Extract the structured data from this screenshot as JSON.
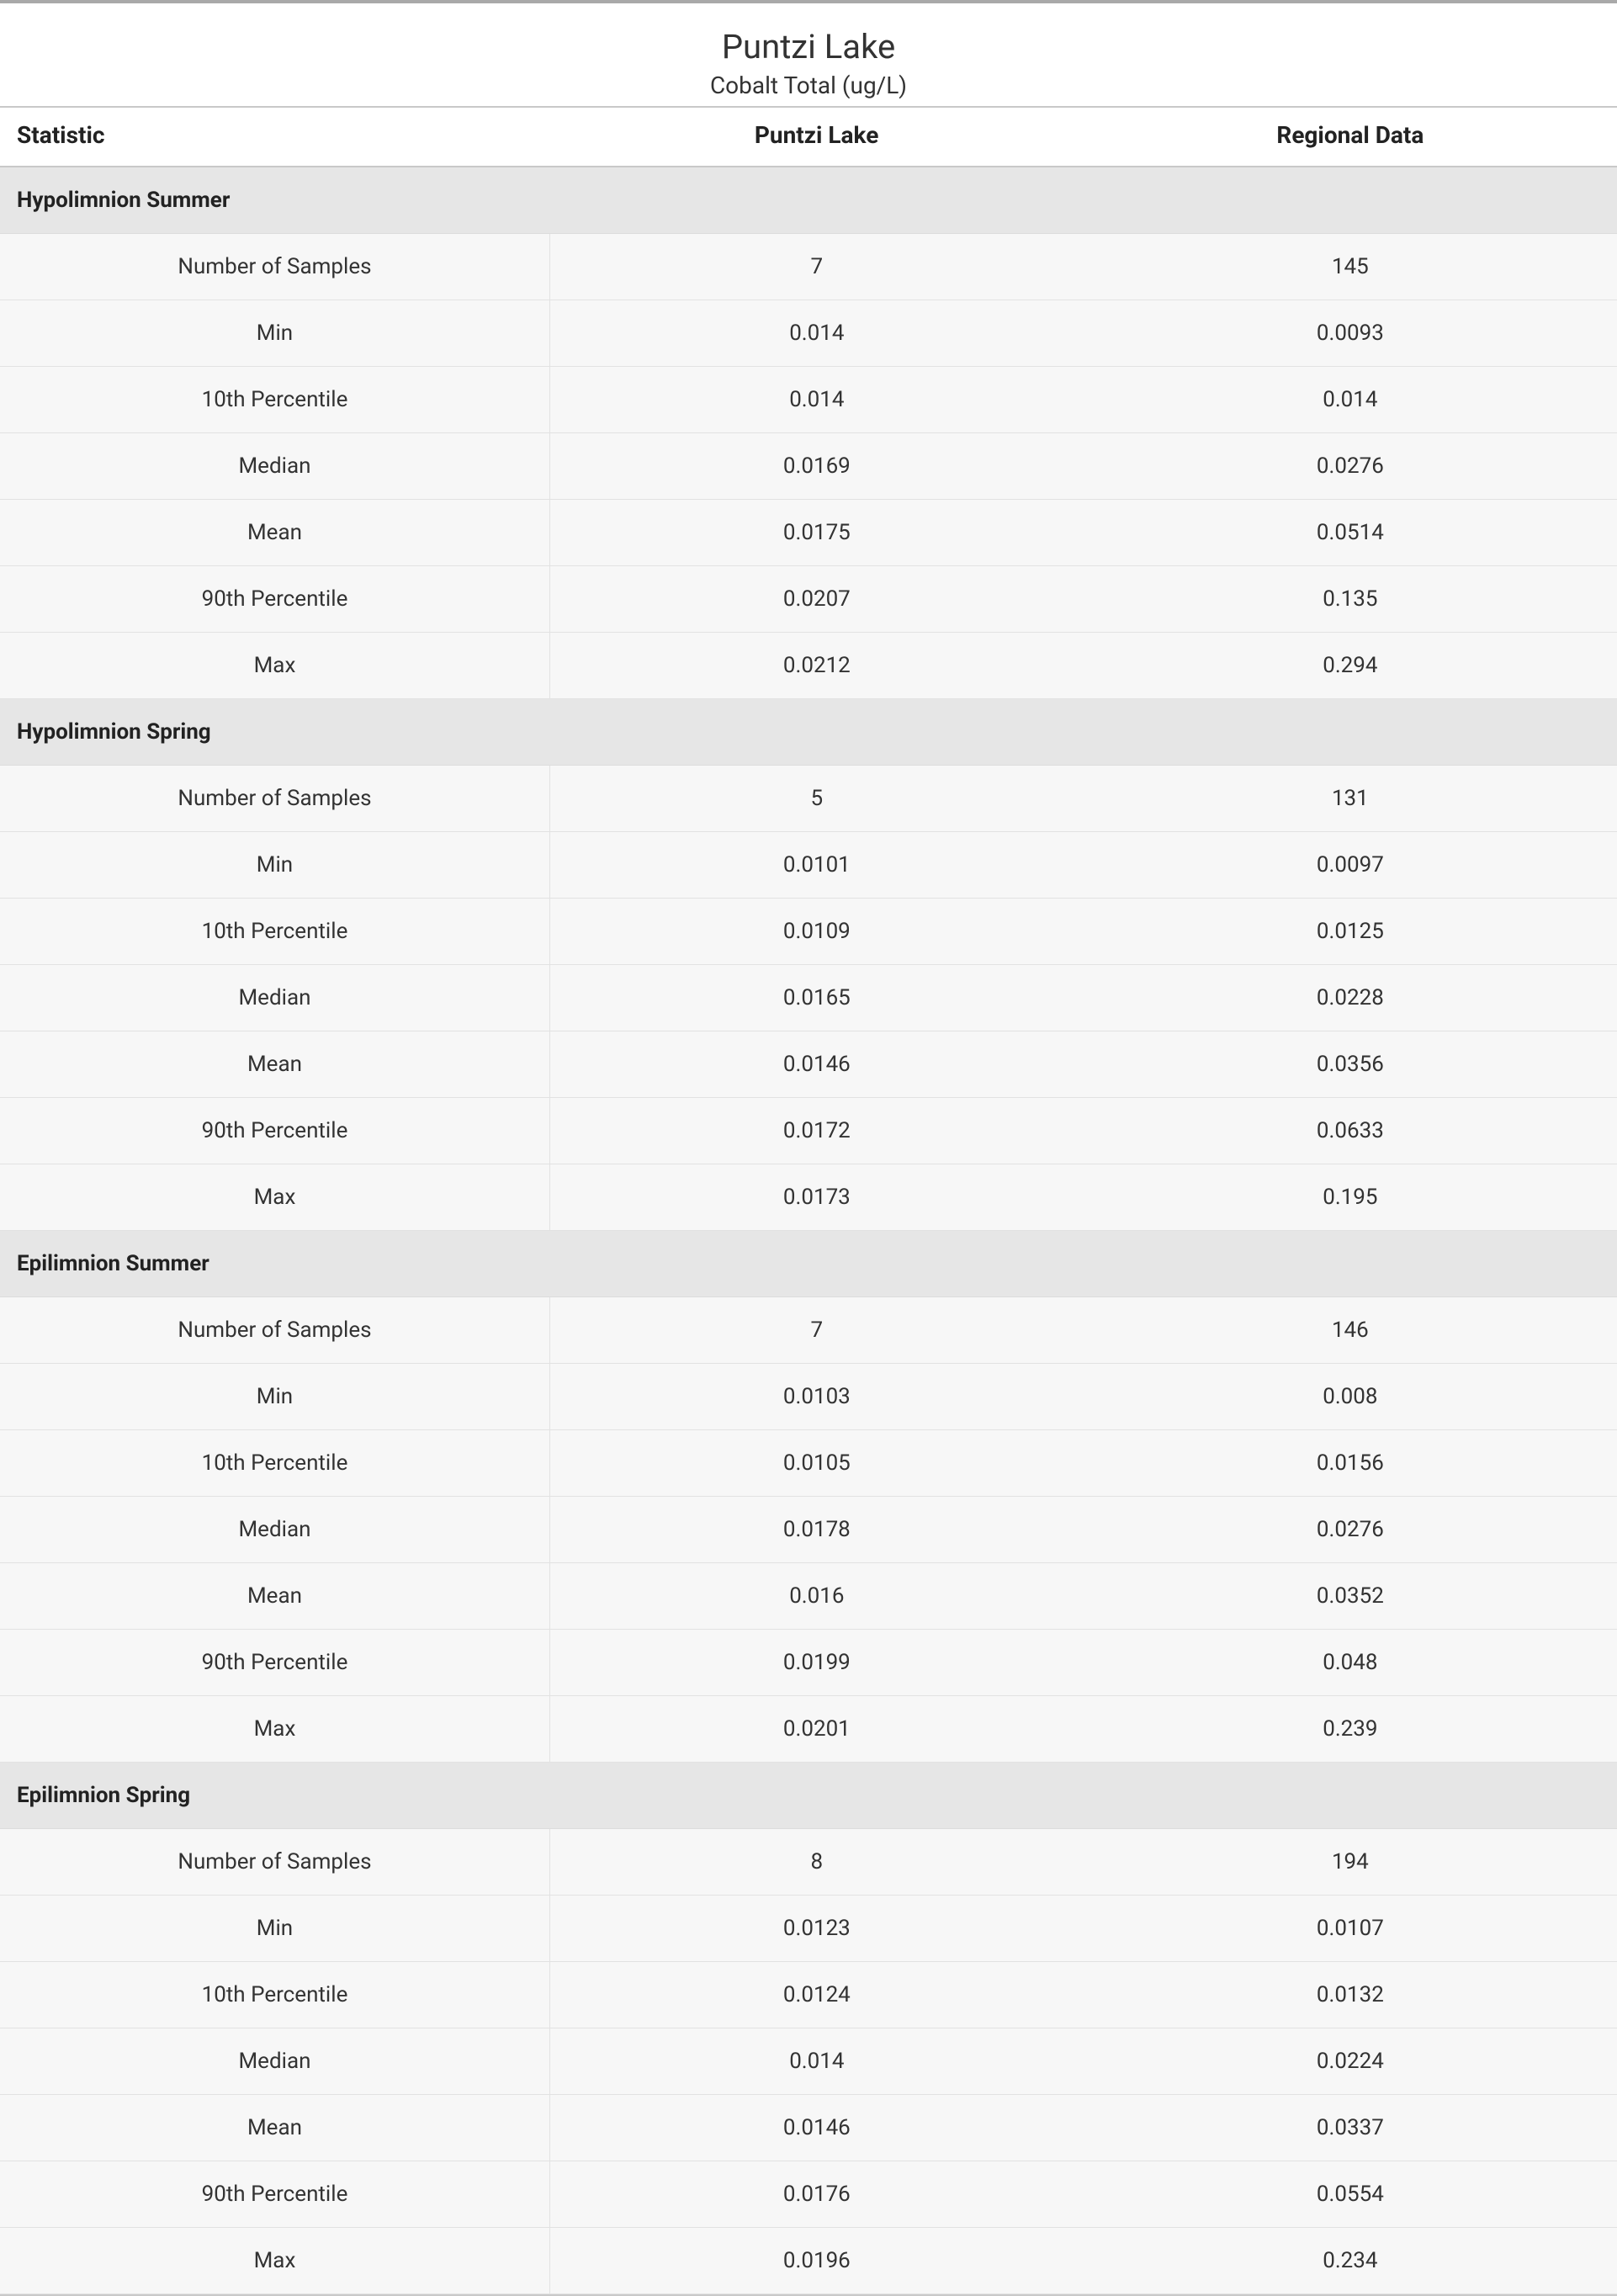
{
  "title": {
    "main": "Puntzi Lake",
    "sub": "Cobalt Total (ug/L)"
  },
  "columns": {
    "stat": "Statistic",
    "site": "Puntzi Lake",
    "regional": "Regional Data"
  },
  "style": {
    "page_border_top_color": "#a9a9a9",
    "header_rule_color": "#c9c9c9",
    "row_border_color": "#e2e2e2",
    "section_bg": "#e6e6e6",
    "stripe_bg": "#f7f7f7",
    "text_color": "#333333",
    "title_fontsize_pt": 30,
    "subtitle_fontsize_pt": 21,
    "header_fontsize_pt": 21,
    "body_fontsize_pt": 20
  },
  "sections": [
    {
      "name": "Hypolimnion Summer",
      "rows": [
        {
          "stat": "Number of Samples",
          "site": "7",
          "regional": "145"
        },
        {
          "stat": "Min",
          "site": "0.014",
          "regional": "0.0093"
        },
        {
          "stat": "10th Percentile",
          "site": "0.014",
          "regional": "0.014"
        },
        {
          "stat": "Median",
          "site": "0.0169",
          "regional": "0.0276"
        },
        {
          "stat": "Mean",
          "site": "0.0175",
          "regional": "0.0514"
        },
        {
          "stat": "90th Percentile",
          "site": "0.0207",
          "regional": "0.135"
        },
        {
          "stat": "Max",
          "site": "0.0212",
          "regional": "0.294"
        }
      ]
    },
    {
      "name": "Hypolimnion Spring",
      "rows": [
        {
          "stat": "Number of Samples",
          "site": "5",
          "regional": "131"
        },
        {
          "stat": "Min",
          "site": "0.0101",
          "regional": "0.0097"
        },
        {
          "stat": "10th Percentile",
          "site": "0.0109",
          "regional": "0.0125"
        },
        {
          "stat": "Median",
          "site": "0.0165",
          "regional": "0.0228"
        },
        {
          "stat": "Mean",
          "site": "0.0146",
          "regional": "0.0356"
        },
        {
          "stat": "90th Percentile",
          "site": "0.0172",
          "regional": "0.0633"
        },
        {
          "stat": "Max",
          "site": "0.0173",
          "regional": "0.195"
        }
      ]
    },
    {
      "name": "Epilimnion Summer",
      "rows": [
        {
          "stat": "Number of Samples",
          "site": "7",
          "regional": "146"
        },
        {
          "stat": "Min",
          "site": "0.0103",
          "regional": "0.008"
        },
        {
          "stat": "10th Percentile",
          "site": "0.0105",
          "regional": "0.0156"
        },
        {
          "stat": "Median",
          "site": "0.0178",
          "regional": "0.0276"
        },
        {
          "stat": "Mean",
          "site": "0.016",
          "regional": "0.0352"
        },
        {
          "stat": "90th Percentile",
          "site": "0.0199",
          "regional": "0.048"
        },
        {
          "stat": "Max",
          "site": "0.0201",
          "regional": "0.239"
        }
      ]
    },
    {
      "name": "Epilimnion Spring",
      "rows": [
        {
          "stat": "Number of Samples",
          "site": "8",
          "regional": "194"
        },
        {
          "stat": "Min",
          "site": "0.0123",
          "regional": "0.0107"
        },
        {
          "stat": "10th Percentile",
          "site": "0.0124",
          "regional": "0.0132"
        },
        {
          "stat": "Median",
          "site": "0.014",
          "regional": "0.0224"
        },
        {
          "stat": "Mean",
          "site": "0.0146",
          "regional": "0.0337"
        },
        {
          "stat": "90th Percentile",
          "site": "0.0176",
          "regional": "0.0554"
        },
        {
          "stat": "Max",
          "site": "0.0196",
          "regional": "0.234"
        }
      ]
    }
  ]
}
